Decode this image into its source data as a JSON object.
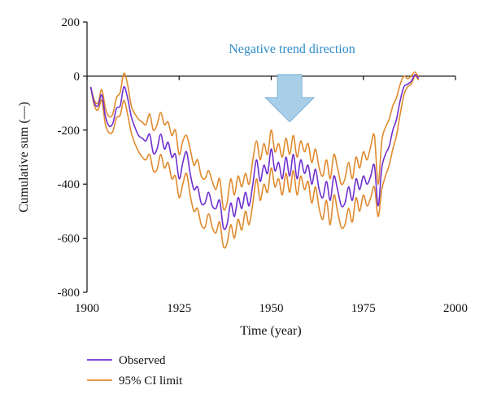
{
  "chart_data": {
    "type": "line",
    "title": "",
    "xlabel": "Time (year)",
    "ylabel": "Cumulative sum (—)",
    "xlim": [
      1900,
      2000
    ],
    "ylim": [
      -800,
      200
    ],
    "xticks": [
      1900,
      1925,
      1950,
      1975,
      2000
    ],
    "yticks": [
      200,
      0,
      -200,
      -400,
      -600,
      -800
    ],
    "grid": false,
    "legend_position": "bottom-left",
    "annotation": {
      "text": "Negative trend direction",
      "color": "#2e8bc8",
      "arrow": "down",
      "arrow_color": "#a9cfe8",
      "arrow_x": 1955,
      "arrow_y_top": 5,
      "arrow_y_bottom": -170
    },
    "series": [
      {
        "name": "Observed",
        "color": "#6f2fd0",
        "points": [
          [
            1901,
            -40
          ],
          [
            1902,
            -100
          ],
          [
            1903,
            -110
          ],
          [
            1904,
            -70
          ],
          [
            1905,
            -150
          ],
          [
            1906,
            -185
          ],
          [
            1907,
            -175
          ],
          [
            1908,
            -120
          ],
          [
            1909,
            -110
          ],
          [
            1910,
            -40
          ],
          [
            1911,
            -80
          ],
          [
            1912,
            -150
          ],
          [
            1913,
            -190
          ],
          [
            1914,
            -220
          ],
          [
            1915,
            -230
          ],
          [
            1916,
            -240
          ],
          [
            1917,
            -215
          ],
          [
            1918,
            -285
          ],
          [
            1919,
            -270
          ],
          [
            1920,
            -215
          ],
          [
            1921,
            -270
          ],
          [
            1922,
            -245
          ],
          [
            1923,
            -300
          ],
          [
            1924,
            -290
          ],
          [
            1925,
            -380
          ],
          [
            1926,
            -320
          ],
          [
            1927,
            -280
          ],
          [
            1928,
            -360
          ],
          [
            1929,
            -420
          ],
          [
            1930,
            -410
          ],
          [
            1931,
            -470
          ],
          [
            1932,
            -470
          ],
          [
            1933,
            -430
          ],
          [
            1934,
            -480
          ],
          [
            1935,
            -490
          ],
          [
            1936,
            -460
          ],
          [
            1937,
            -560
          ],
          [
            1938,
            -550
          ],
          [
            1939,
            -470
          ],
          [
            1940,
            -520
          ],
          [
            1941,
            -450
          ],
          [
            1942,
            -490
          ],
          [
            1943,
            -430
          ],
          [
            1944,
            -480
          ],
          [
            1945,
            -400
          ],
          [
            1946,
            -310
          ],
          [
            1947,
            -390
          ],
          [
            1948,
            -330
          ],
          [
            1949,
            -360
          ],
          [
            1950,
            -270
          ],
          [
            1951,
            -350
          ],
          [
            1952,
            -320
          ],
          [
            1953,
            -380
          ],
          [
            1954,
            -300
          ],
          [
            1955,
            -370
          ],
          [
            1956,
            -290
          ],
          [
            1957,
            -380
          ],
          [
            1958,
            -310
          ],
          [
            1959,
            -360
          ],
          [
            1960,
            -330
          ],
          [
            1961,
            -400
          ],
          [
            1962,
            -345
          ],
          [
            1963,
            -420
          ],
          [
            1964,
            -450
          ],
          [
            1965,
            -390
          ],
          [
            1966,
            -460
          ],
          [
            1967,
            -370
          ],
          [
            1968,
            -420
          ],
          [
            1969,
            -480
          ],
          [
            1970,
            -470
          ],
          [
            1971,
            -410
          ],
          [
            1972,
            -460
          ],
          [
            1973,
            -380
          ],
          [
            1974,
            -420
          ],
          [
            1975,
            -370
          ],
          [
            1976,
            -400
          ],
          [
            1977,
            -370
          ],
          [
            1978,
            -330
          ],
          [
            1979,
            -480
          ],
          [
            1980,
            -340
          ],
          [
            1981,
            -290
          ],
          [
            1982,
            -260
          ],
          [
            1983,
            -200
          ],
          [
            1984,
            -160
          ],
          [
            1985,
            -90
          ],
          [
            1986,
            -40
          ],
          [
            1987,
            -30
          ],
          [
            1988,
            -20
          ],
          [
            1989,
            5
          ],
          [
            1990,
            -10
          ]
        ]
      },
      {
        "name": "95% CI limit",
        "color": "#e08a2c",
        "points": [
          [
            1901,
            -40
          ],
          [
            1902,
            -90
          ],
          [
            1903,
            -100
          ],
          [
            1904,
            -50
          ],
          [
            1905,
            -120
          ],
          [
            1906,
            -150
          ],
          [
            1907,
            -140
          ],
          [
            1908,
            -80
          ],
          [
            1909,
            -60
          ],
          [
            1910,
            10
          ],
          [
            1911,
            -30
          ],
          [
            1912,
            -110
          ],
          [
            1913,
            -140
          ],
          [
            1914,
            -160
          ],
          [
            1915,
            -170
          ],
          [
            1916,
            -180
          ],
          [
            1917,
            -140
          ],
          [
            1918,
            -200
          ],
          [
            1919,
            -180
          ],
          [
            1920,
            -135
          ],
          [
            1921,
            -180
          ],
          [
            1922,
            -170
          ],
          [
            1923,
            -220
          ],
          [
            1924,
            -200
          ],
          [
            1925,
            -290
          ],
          [
            1926,
            -240
          ],
          [
            1927,
            -220
          ],
          [
            1928,
            -270
          ],
          [
            1929,
            -330
          ],
          [
            1930,
            -310
          ],
          [
            1931,
            -370
          ],
          [
            1932,
            -380
          ],
          [
            1933,
            -350
          ],
          [
            1934,
            -390
          ],
          [
            1935,
            -420
          ],
          [
            1936,
            -380
          ],
          [
            1937,
            -490
          ],
          [
            1938,
            -470
          ],
          [
            1939,
            -380
          ],
          [
            1940,
            -440
          ],
          [
            1941,
            -370
          ],
          [
            1942,
            -410
          ],
          [
            1943,
            -360
          ],
          [
            1944,
            -400
          ],
          [
            1945,
            -310
          ],
          [
            1946,
            -240
          ],
          [
            1947,
            -310
          ],
          [
            1948,
            -250
          ],
          [
            1949,
            -290
          ],
          [
            1950,
            -200
          ],
          [
            1951,
            -280
          ],
          [
            1952,
            -250
          ],
          [
            1953,
            -300
          ],
          [
            1954,
            -230
          ],
          [
            1955,
            -290
          ],
          [
            1956,
            -220
          ],
          [
            1957,
            -300
          ],
          [
            1958,
            -240
          ],
          [
            1959,
            -280
          ],
          [
            1960,
            -250
          ],
          [
            1961,
            -320
          ],
          [
            1962,
            -270
          ],
          [
            1963,
            -340
          ],
          [
            1964,
            -370
          ],
          [
            1965,
            -310
          ],
          [
            1966,
            -380
          ],
          [
            1967,
            -290
          ],
          [
            1968,
            -340
          ],
          [
            1969,
            -400
          ],
          [
            1970,
            -380
          ],
          [
            1971,
            -320
          ],
          [
            1972,
            -380
          ],
          [
            1973,
            -300
          ],
          [
            1974,
            -340
          ],
          [
            1975,
            -280
          ],
          [
            1976,
            -310
          ],
          [
            1977,
            -260
          ],
          [
            1978,
            -220
          ],
          [
            1979,
            -400
          ],
          [
            1980,
            -240
          ],
          [
            1981,
            -190
          ],
          [
            1982,
            -160
          ],
          [
            1983,
            -110
          ],
          [
            1984,
            -80
          ],
          [
            1985,
            -30
          ],
          [
            1986,
            0
          ],
          [
            1987,
            -10
          ],
          [
            1988,
            0
          ],
          [
            1989,
            15
          ],
          [
            1990,
            -5
          ]
        ]
      },
      {
        "name": "95% CI limit",
        "color": "#e08a2c",
        "points": [
          [
            1901,
            -40
          ],
          [
            1902,
            -110
          ],
          [
            1903,
            -125
          ],
          [
            1904,
            -90
          ],
          [
            1905,
            -180
          ],
          [
            1906,
            -210
          ],
          [
            1907,
            -205
          ],
          [
            1908,
            -155
          ],
          [
            1909,
            -145
          ],
          [
            1910,
            -90
          ],
          [
            1911,
            -140
          ],
          [
            1912,
            -210
          ],
          [
            1913,
            -250
          ],
          [
            1914,
            -280
          ],
          [
            1915,
            -300
          ],
          [
            1916,
            -310
          ],
          [
            1917,
            -290
          ],
          [
            1918,
            -350
          ],
          [
            1919,
            -345
          ],
          [
            1920,
            -290
          ],
          [
            1921,
            -340
          ],
          [
            1922,
            -320
          ],
          [
            1923,
            -380
          ],
          [
            1924,
            -370
          ],
          [
            1925,
            -450
          ],
          [
            1926,
            -400
          ],
          [
            1927,
            -360
          ],
          [
            1928,
            -440
          ],
          [
            1929,
            -500
          ],
          [
            1930,
            -490
          ],
          [
            1931,
            -550
          ],
          [
            1932,
            -560
          ],
          [
            1933,
            -510
          ],
          [
            1934,
            -560
          ],
          [
            1935,
            -580
          ],
          [
            1936,
            -540
          ],
          [
            1937,
            -630
          ],
          [
            1938,
            -620
          ],
          [
            1939,
            -550
          ],
          [
            1940,
            -600
          ],
          [
            1941,
            -530
          ],
          [
            1942,
            -570
          ],
          [
            1943,
            -500
          ],
          [
            1944,
            -550
          ],
          [
            1945,
            -470
          ],
          [
            1946,
            -380
          ],
          [
            1947,
            -460
          ],
          [
            1948,
            -400
          ],
          [
            1949,
            -430
          ],
          [
            1950,
            -340
          ],
          [
            1951,
            -410
          ],
          [
            1952,
            -380
          ],
          [
            1953,
            -440
          ],
          [
            1954,
            -360
          ],
          [
            1955,
            -430
          ],
          [
            1956,
            -350
          ],
          [
            1957,
            -440
          ],
          [
            1958,
            -370
          ],
          [
            1959,
            -420
          ],
          [
            1960,
            -390
          ],
          [
            1961,
            -470
          ],
          [
            1962,
            -410
          ],
          [
            1963,
            -490
          ],
          [
            1964,
            -530
          ],
          [
            1965,
            -460
          ],
          [
            1966,
            -550
          ],
          [
            1967,
            -440
          ],
          [
            1968,
            -500
          ],
          [
            1969,
            -560
          ],
          [
            1970,
            -550
          ],
          [
            1971,
            -490
          ],
          [
            1972,
            -540
          ],
          [
            1973,
            -450
          ],
          [
            1974,
            -500
          ],
          [
            1975,
            -440
          ],
          [
            1976,
            -480
          ],
          [
            1977,
            -450
          ],
          [
            1978,
            -410
          ],
          [
            1979,
            -520
          ],
          [
            1980,
            -420
          ],
          [
            1981,
            -370
          ],
          [
            1982,
            -330
          ],
          [
            1983,
            -270
          ],
          [
            1984,
            -220
          ],
          [
            1985,
            -140
          ],
          [
            1986,
            -70
          ],
          [
            1987,
            -40
          ],
          [
            1988,
            -30
          ],
          [
            1989,
            0
          ],
          [
            1990,
            -15
          ]
        ]
      }
    ],
    "legend": [
      {
        "label": "Observed",
        "color": "#6f2fd0"
      },
      {
        "label": "95% CI limit",
        "color": "#e08a2c"
      }
    ]
  }
}
